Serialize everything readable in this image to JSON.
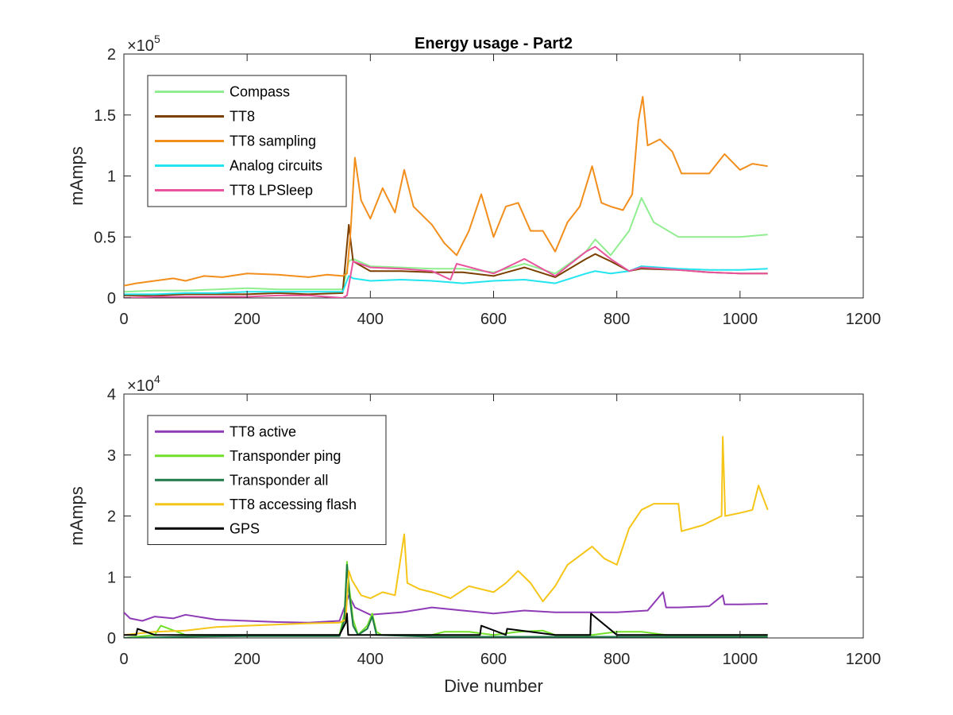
{
  "chart_data": [
    {
      "type": "line",
      "title": "Energy usage - Part2",
      "xlabel": "",
      "ylabel": "mAmps",
      "xlim": [
        0,
        1200
      ],
      "ylim": [
        0,
        2
      ],
      "y_scale_exponent": {
        "base": "×10",
        "power": "5"
      },
      "x_ticks": [
        "0",
        "200",
        "400",
        "600",
        "800",
        "1000",
        "1200"
      ],
      "y_ticks": [
        "0",
        "0.5",
        "1",
        "1.5",
        "2"
      ],
      "legend_position": "top-left",
      "grid": false,
      "series": [
        {
          "name": "Compass",
          "color": "#90ee90",
          "x": [
            0,
            50,
            100,
            150,
            200,
            250,
            300,
            355,
            365,
            372,
            400,
            450,
            500,
            550,
            600,
            650,
            700,
            750,
            765,
            790,
            820,
            840,
            860,
            900,
            950,
            1000,
            1045
          ],
          "values": [
            0.05,
            0.06,
            0.06,
            0.07,
            0.08,
            0.07,
            0.07,
            0.07,
            0.3,
            0.32,
            0.26,
            0.25,
            0.24,
            0.24,
            0.21,
            0.28,
            0.2,
            0.38,
            0.48,
            0.35,
            0.55,
            0.82,
            0.62,
            0.5,
            0.5,
            0.5,
            0.52
          ]
        },
        {
          "name": "TT8",
          "color": "#7b3f00",
          "x": [
            0,
            50,
            100,
            150,
            200,
            250,
            300,
            355,
            365,
            372,
            400,
            450,
            500,
            550,
            600,
            650,
            700,
            750,
            765,
            790,
            820,
            840,
            900,
            950,
            1000,
            1045
          ],
          "values": [
            0.02,
            0.02,
            0.03,
            0.03,
            0.03,
            0.04,
            0.03,
            0.04,
            0.6,
            0.3,
            0.22,
            0.22,
            0.21,
            0.21,
            0.18,
            0.25,
            0.17,
            0.32,
            0.36,
            0.3,
            0.22,
            0.24,
            0.23,
            0.21,
            0.2,
            0.2
          ]
        },
        {
          "name": "TT8 sampling",
          "color": "#f28e1c",
          "x": [
            0,
            20,
            50,
            80,
            100,
            130,
            160,
            200,
            250,
            300,
            330,
            355,
            362,
            368,
            375,
            385,
            400,
            420,
            440,
            455,
            470,
            500,
            520,
            540,
            560,
            580,
            600,
            620,
            640,
            660,
            680,
            700,
            720,
            740,
            760,
            775,
            790,
            810,
            825,
            835,
            842,
            850,
            870,
            890,
            905,
            950,
            975,
            1000,
            1020,
            1045
          ],
          "values": [
            0.1,
            0.12,
            0.14,
            0.16,
            0.14,
            0.18,
            0.17,
            0.2,
            0.19,
            0.17,
            0.19,
            0.18,
            0.2,
            0.55,
            1.15,
            0.8,
            0.65,
            0.9,
            0.7,
            1.05,
            0.75,
            0.6,
            0.45,
            0.35,
            0.55,
            0.85,
            0.5,
            0.75,
            0.78,
            0.55,
            0.55,
            0.38,
            0.62,
            0.75,
            1.08,
            0.78,
            0.75,
            0.72,
            0.85,
            1.45,
            1.65,
            1.25,
            1.3,
            1.2,
            1.02,
            1.02,
            1.18,
            1.05,
            1.1,
            1.08
          ]
        },
        {
          "name": "Analog circuits",
          "color": "#22e5f0",
          "x": [
            0,
            50,
            100,
            150,
            200,
            250,
            300,
            355,
            365,
            372,
            400,
            450,
            500,
            550,
            600,
            650,
            700,
            750,
            765,
            790,
            820,
            840,
            900,
            950,
            1000,
            1045
          ],
          "values": [
            0.03,
            0.03,
            0.04,
            0.04,
            0.05,
            0.05,
            0.05,
            0.05,
            0.18,
            0.16,
            0.14,
            0.15,
            0.14,
            0.12,
            0.14,
            0.15,
            0.12,
            0.2,
            0.22,
            0.2,
            0.22,
            0.26,
            0.24,
            0.23,
            0.23,
            0.24
          ]
        },
        {
          "name": "TT8 LPSleep",
          "color": "#e8559e",
          "x": [
            0,
            50,
            100,
            150,
            200,
            250,
            300,
            355,
            362,
            372,
            400,
            450,
            500,
            530,
            540,
            600,
            650,
            700,
            750,
            765,
            790,
            820,
            840,
            900,
            950,
            1000,
            1045
          ],
          "values": [
            0.0,
            0.01,
            0.01,
            0.01,
            0.01,
            0.02,
            0.02,
            0.0,
            0.02,
            0.3,
            0.25,
            0.24,
            0.22,
            0.15,
            0.28,
            0.2,
            0.32,
            0.18,
            0.38,
            0.42,
            0.32,
            0.22,
            0.25,
            0.23,
            0.21,
            0.2,
            0.2
          ]
        }
      ]
    },
    {
      "type": "line",
      "title": "",
      "xlabel": "Dive number",
      "ylabel": "mAmps",
      "xlim": [
        0,
        1200
      ],
      "ylim": [
        0,
        4
      ],
      "y_scale_exponent": {
        "base": "×10",
        "power": "4"
      },
      "x_ticks": [
        "0",
        "200",
        "400",
        "600",
        "800",
        "1000",
        "1200"
      ],
      "y_ticks": [
        "0",
        "1",
        "2",
        "3",
        "4"
      ],
      "legend_position": "top-left",
      "grid": false,
      "series": [
        {
          "name": "TT8 active",
          "color": "#8e3bb5",
          "x": [
            0,
            10,
            30,
            50,
            80,
            100,
            150,
            200,
            250,
            300,
            350,
            365,
            375,
            400,
            450,
            500,
            550,
            600,
            650,
            700,
            750,
            800,
            850,
            875,
            880,
            900,
            950,
            972,
            975,
            1000,
            1045
          ],
          "values": [
            0.42,
            0.32,
            0.28,
            0.35,
            0.32,
            0.38,
            0.3,
            0.28,
            0.26,
            0.25,
            0.28,
            0.7,
            0.5,
            0.38,
            0.42,
            0.5,
            0.45,
            0.4,
            0.45,
            0.42,
            0.42,
            0.42,
            0.45,
            0.75,
            0.5,
            0.5,
            0.52,
            0.7,
            0.55,
            0.55,
            0.56
          ]
        },
        {
          "name": "Transponder ping",
          "color": "#72e02a",
          "x": [
            0,
            50,
            60,
            100,
            200,
            250,
            300,
            350,
            358,
            362,
            366,
            372,
            380,
            395,
            403,
            410,
            418,
            430,
            500,
            520,
            560,
            600,
            640,
            680,
            700,
            760,
            800,
            840,
            880,
            900,
            1000,
            1045
          ],
          "values": [
            0.0,
            0.05,
            0.2,
            0.05,
            0.05,
            0.05,
            0.05,
            0.05,
            0.4,
            1.25,
            0.8,
            0.3,
            0.05,
            0.2,
            0.4,
            0.1,
            0.05,
            0.05,
            0.05,
            0.1,
            0.1,
            0.05,
            0.1,
            0.12,
            0.05,
            0.05,
            0.1,
            0.1,
            0.05,
            0.05,
            0.05,
            0.05
          ]
        },
        {
          "name": "Transponder all",
          "color": "#1f7a4a",
          "x": [
            0,
            100,
            200,
            300,
            350,
            358,
            362,
            366,
            372,
            380,
            395,
            403,
            410,
            500,
            600,
            700,
            800,
            900,
            1000,
            1045
          ],
          "values": [
            0.0,
            0.02,
            0.03,
            0.03,
            0.03,
            0.3,
            1.2,
            0.7,
            0.2,
            0.05,
            0.15,
            0.35,
            0.05,
            0.02,
            0.02,
            0.02,
            0.02,
            0.02,
            0.02,
            0.02
          ]
        },
        {
          "name": "TT8 accessing flash",
          "color": "#f5c518",
          "x": [
            0,
            50,
            100,
            150,
            200,
            250,
            300,
            350,
            360,
            365,
            370,
            385,
            400,
            420,
            440,
            455,
            460,
            480,
            500,
            530,
            560,
            600,
            620,
            640,
            660,
            680,
            700,
            720,
            740,
            760,
            780,
            800,
            820,
            840,
            860,
            880,
            900,
            905,
            940,
            970,
            972,
            976,
            1000,
            1020,
            1030,
            1045
          ],
          "values": [
            0.05,
            0.1,
            0.12,
            0.18,
            0.2,
            0.22,
            0.24,
            0.25,
            0.3,
            1.1,
            0.95,
            0.7,
            0.65,
            0.75,
            0.7,
            1.7,
            0.9,
            0.8,
            0.75,
            0.65,
            0.85,
            0.75,
            0.9,
            1.1,
            0.9,
            0.6,
            0.85,
            1.2,
            1.35,
            1.5,
            1.3,
            1.2,
            1.8,
            2.1,
            2.2,
            2.2,
            2.2,
            1.75,
            1.85,
            2.0,
            3.3,
            2.0,
            2.05,
            2.1,
            2.5,
            2.1
          ]
        },
        {
          "name": "GPS",
          "color": "#000000",
          "x": [
            0,
            20,
            22,
            50,
            100,
            200,
            300,
            350,
            360,
            362,
            364,
            380,
            400,
            450,
            500,
            550,
            578,
            580,
            620,
            622,
            700,
            757,
            758,
            800,
            900,
            1000,
            1045
          ],
          "values": [
            0.05,
            0.05,
            0.15,
            0.05,
            0.05,
            0.05,
            0.05,
            0.05,
            0.25,
            0.4,
            0.05,
            0.05,
            0.05,
            0.05,
            0.05,
            0.05,
            0.05,
            0.2,
            0.05,
            0.15,
            0.05,
            0.05,
            0.4,
            0.05,
            0.05,
            0.05,
            0.05
          ]
        }
      ]
    }
  ]
}
